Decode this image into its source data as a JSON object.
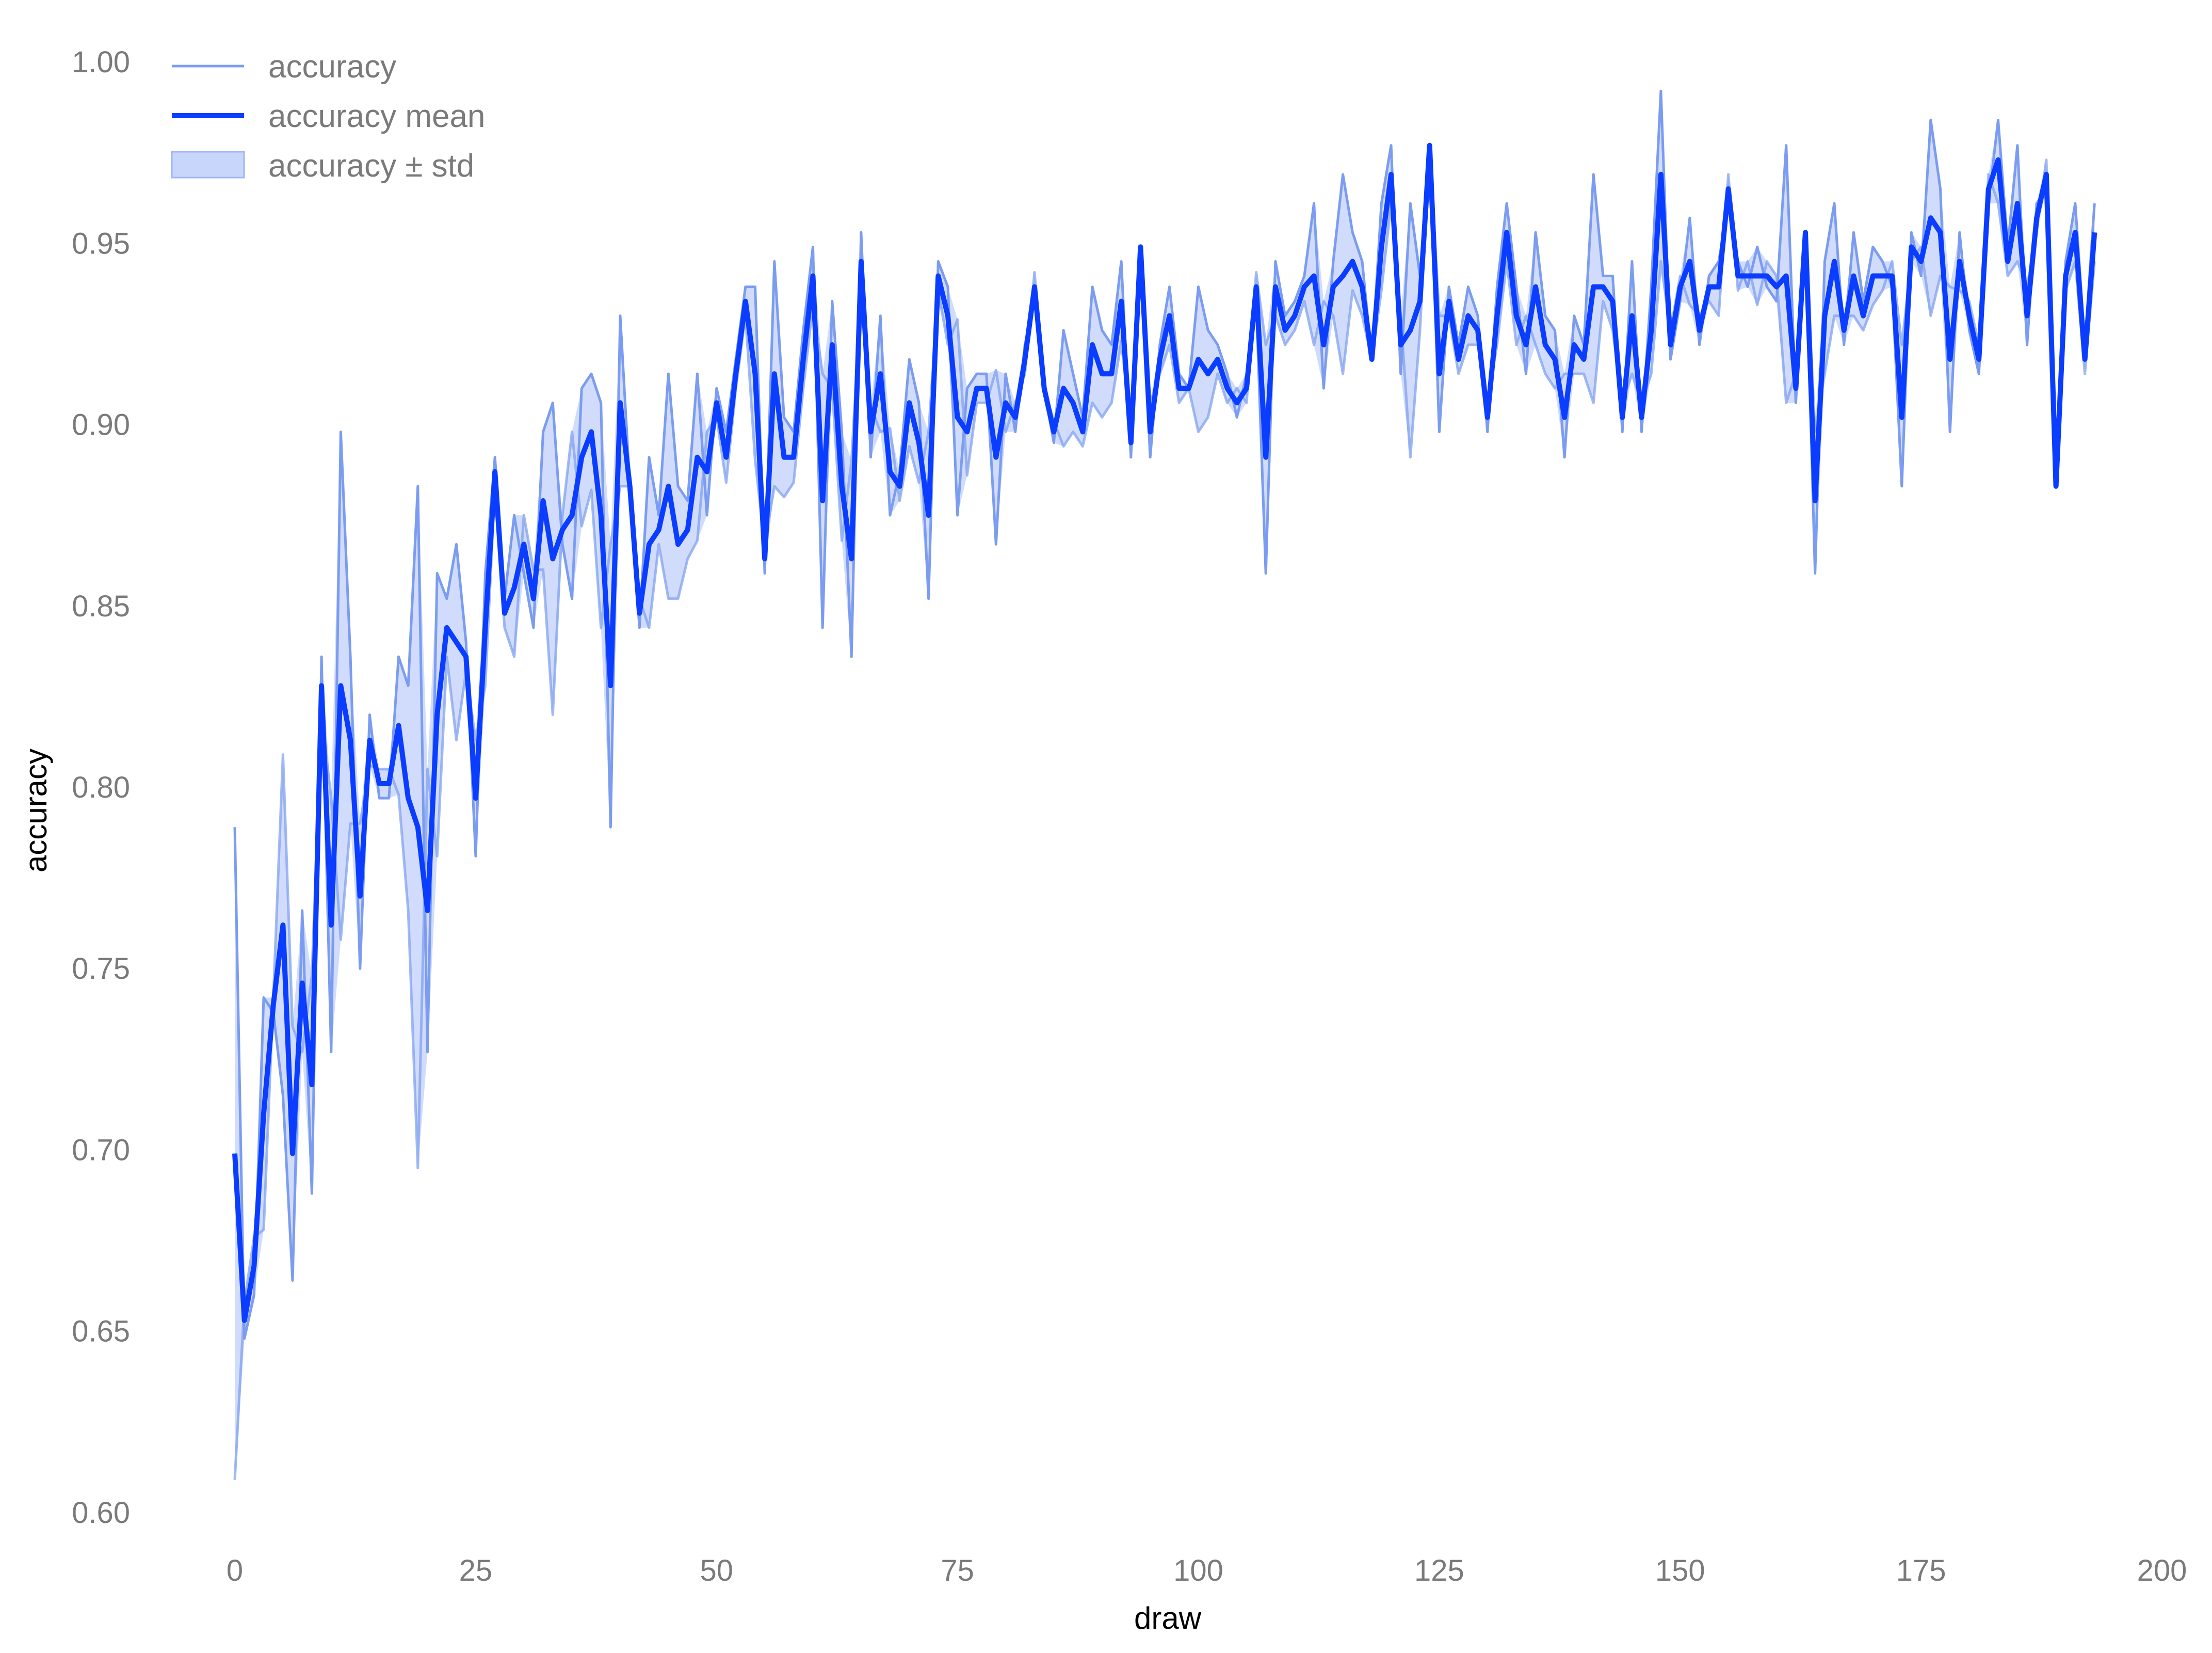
{
  "chart_data": {
    "type": "line",
    "title": "",
    "xlabel": "draw",
    "ylabel": "accuracy",
    "xlim": [
      0,
      200
    ],
    "ylim": [
      0.6,
      1.0
    ],
    "grid": false,
    "legend_position": "top-left",
    "x_ticks": [
      0,
      25,
      50,
      75,
      100,
      125,
      150,
      175,
      200
    ],
    "y_ticks": [
      0.6,
      0.65,
      0.7,
      0.75,
      0.8,
      0.85,
      0.9,
      0.95,
      1.0
    ],
    "x_tick_labels": [
      "0",
      "25",
      "50",
      "75",
      "100",
      "125",
      "150",
      "175",
      "200"
    ],
    "y_tick_labels": [
      "0.60",
      "0.65",
      "0.70",
      "0.75",
      "0.80",
      "0.85",
      "0.90",
      "0.95",
      "1.00"
    ],
    "legend": [
      {
        "label": "accuracy",
        "kind": "line-light"
      },
      {
        "label": "accuracy mean",
        "kind": "line-dark"
      },
      {
        "label": "accuracy ± std",
        "kind": "band"
      }
    ],
    "colors": {
      "mean": "#0a3dff",
      "runs": "#7b9cf0",
      "band": "#c9d6fb",
      "band_edge": "#9fb5f5",
      "tick_text": "#7a7a7a",
      "axis_text": "#000000"
    },
    "x": [
      0,
      1,
      2,
      3,
      4,
      5,
      6,
      7,
      8,
      9,
      10,
      11,
      12,
      13,
      14,
      15,
      16,
      17,
      18,
      19,
      20,
      21,
      22,
      23,
      24,
      25,
      26,
      27,
      28,
      29,
      30,
      31,
      32,
      33,
      34,
      35,
      36,
      37,
      38,
      39,
      40,
      41,
      42,
      43,
      44,
      45,
      46,
      47,
      48,
      49,
      50,
      51,
      52,
      53,
      54,
      55,
      56,
      57,
      58,
      59,
      60,
      61,
      62,
      63,
      64,
      65,
      66,
      67,
      68,
      69,
      70,
      71,
      72,
      73,
      74,
      75,
      76,
      77,
      78,
      79,
      80,
      81,
      82,
      83,
      84,
      85,
      86,
      87,
      88,
      89,
      90,
      91,
      92,
      93,
      94,
      95,
      96,
      97,
      98,
      99,
      100,
      101,
      102,
      103,
      104,
      105,
      106,
      107,
      108,
      109,
      110,
      111,
      112,
      113,
      114,
      115,
      116,
      117,
      118,
      119,
      120,
      121,
      122,
      123,
      124,
      125,
      126,
      127,
      128,
      129,
      130,
      131,
      132,
      133,
      134,
      135,
      136,
      137,
      138,
      139,
      140,
      141,
      142,
      143,
      144,
      145,
      146,
      147,
      148,
      149,
      150,
      151,
      152,
      153,
      154,
      155,
      156,
      157,
      158,
      159,
      160,
      161,
      162,
      163,
      164,
      165,
      166,
      167,
      168,
      169,
      170,
      171,
      172,
      173,
      174,
      175,
      176,
      177,
      178,
      179,
      180,
      181,
      182,
      183,
      184,
      185,
      186,
      187,
      188,
      189,
      190,
      191,
      192,
      193
    ],
    "series": [
      {
        "name": "accuracy mean",
        "values": [
          0.699,
          0.653,
          0.668,
          0.71,
          0.74,
          0.762,
          0.699,
          0.746,
          0.718,
          0.828,
          0.762,
          0.828,
          0.813,
          0.77,
          0.813,
          0.801,
          0.801,
          0.817,
          0.797,
          0.789,
          0.766,
          0.82,
          0.844,
          0.84,
          0.836,
          0.797,
          0.844,
          0.887,
          0.848,
          0.855,
          0.867,
          0.852,
          0.879,
          0.863,
          0.871,
          0.875,
          0.891,
          0.898,
          0.875,
          0.828,
          0.906,
          0.883,
          0.848,
          0.867,
          0.871,
          0.883,
          0.867,
          0.871,
          0.891,
          0.887,
          0.906,
          0.891,
          0.914,
          0.934,
          0.914,
          0.863,
          0.914,
          0.891,
          0.891,
          0.918,
          0.941,
          0.879,
          0.922,
          0.883,
          0.863,
          0.945,
          0.898,
          0.914,
          0.887,
          0.883,
          0.906,
          0.895,
          0.875,
          0.941,
          0.93,
          0.902,
          0.898,
          0.91,
          0.91,
          0.891,
          0.906,
          0.902,
          0.918,
          0.938,
          0.91,
          0.898,
          0.91,
          0.906,
          0.898,
          0.922,
          0.914,
          0.914,
          0.934,
          0.895,
          0.949,
          0.898,
          0.918,
          0.93,
          0.91,
          0.91,
          0.918,
          0.914,
          0.918,
          0.91,
          0.906,
          0.91,
          0.938,
          0.891,
          0.938,
          0.926,
          0.93,
          0.938,
          0.941,
          0.922,
          0.938,
          0.941,
          0.945,
          0.938,
          0.918,
          0.949,
          0.969,
          0.922,
          0.926,
          0.934,
          0.977,
          0.914,
          0.934,
          0.918,
          0.93,
          0.926,
          0.902,
          0.93,
          0.953,
          0.93,
          0.922,
          0.938,
          0.922,
          0.918,
          0.902,
          0.922,
          0.918,
          0.938,
          0.938,
          0.934,
          0.902,
          0.93,
          0.902,
          0.926,
          0.969,
          0.922,
          0.938,
          0.945,
          0.926,
          0.938,
          0.938,
          0.965,
          0.941,
          0.941,
          0.941,
          0.941,
          0.938,
          0.941,
          0.91,
          0.953,
          0.879,
          0.93,
          0.945,
          0.926,
          0.941,
          0.93,
          0.941,
          0.941,
          0.941,
          0.902,
          0.949,
          0.945,
          0.957,
          0.953,
          0.918,
          0.945,
          0.93,
          0.918,
          0.965,
          0.973,
          0.945,
          0.961,
          0.93,
          0.957,
          0.969,
          0.883,
          0.941,
          0.953,
          0.918,
          0.953
        ]
      },
      {
        "name": "accuracy",
        "values": [
          0.789,
          0.648,
          0.66,
          0.742,
          0.738,
          0.715,
          0.664,
          0.766,
          0.688,
          0.836,
          0.727,
          0.898,
          0.836,
          0.75,
          0.82,
          0.797,
          0.797,
          0.836,
          0.828,
          0.883,
          0.727,
          0.859,
          0.852,
          0.867,
          0.84,
          0.781,
          0.859,
          0.891,
          0.852,
          0.875,
          0.859,
          0.844,
          0.898,
          0.906,
          0.867,
          0.852,
          0.91,
          0.914,
          0.906,
          0.789,
          0.93,
          0.883,
          0.844,
          0.891,
          0.875,
          0.914,
          0.883,
          0.879,
          0.914,
          0.875,
          0.91,
          0.898,
          0.918,
          0.938,
          0.938,
          0.859,
          0.945,
          0.902,
          0.898,
          0.926,
          0.949,
          0.844,
          0.934,
          0.898,
          0.836,
          0.953,
          0.891,
          0.93,
          0.875,
          0.887,
          0.918,
          0.906,
          0.852,
          0.945,
          0.938,
          0.875,
          0.91,
          0.914,
          0.914,
          0.867,
          0.914,
          0.898,
          0.922,
          0.934,
          0.91,
          0.895,
          0.926,
          0.914,
          0.902,
          0.938,
          0.926,
          0.922,
          0.945,
          0.891,
          0.949,
          0.891,
          0.922,
          0.938,
          0.914,
          0.91,
          0.938,
          0.926,
          0.922,
          0.914,
          0.902,
          0.914,
          0.934,
          0.859,
          0.945,
          0.93,
          0.934,
          0.941,
          0.961,
          0.91,
          0.945,
          0.969,
          0.953,
          0.945,
          0.918,
          0.961,
          0.977,
          0.914,
          0.961,
          0.941,
          0.977,
          0.898,
          0.938,
          0.922,
          0.938,
          0.93,
          0.898,
          0.938,
          0.961,
          0.938,
          0.914,
          0.953,
          0.93,
          0.926,
          0.891,
          0.93,
          0.922,
          0.969,
          0.941,
          0.941,
          0.898,
          0.945,
          0.898,
          0.938,
          0.992,
          0.918,
          0.934,
          0.957,
          0.922,
          0.941,
          0.945,
          0.961,
          0.945,
          0.938,
          0.949,
          0.938,
          0.934,
          0.977,
          0.906,
          0.953,
          0.859,
          0.945,
          0.961,
          0.922,
          0.953,
          0.934,
          0.949,
          0.945,
          0.938,
          0.883,
          0.953,
          0.941,
          0.984,
          0.965,
          0.898,
          0.953,
          0.926,
          0.914,
          0.961,
          0.984,
          0.949,
          0.977,
          0.922,
          0.961,
          0.965,
          0.883,
          0.945,
          0.961,
          0.922,
          0.961
        ]
      },
      {
        "name": "accuracy",
        "values": [
          0.609,
          0.658,
          0.676,
          0.678,
          0.742,
          0.809,
          0.734,
          0.727,
          0.748,
          0.82,
          0.797,
          0.758,
          0.79,
          0.79,
          0.806,
          0.805,
          0.805,
          0.798,
          0.766,
          0.695,
          0.805,
          0.781,
          0.836,
          0.813,
          0.832,
          0.813,
          0.828,
          0.883,
          0.844,
          0.836,
          0.875,
          0.86,
          0.86,
          0.82,
          0.875,
          0.898,
          0.872,
          0.882,
          0.844,
          0.867,
          0.883,
          0.883,
          0.852,
          0.844,
          0.867,
          0.852,
          0.852,
          0.863,
          0.868,
          0.898,
          0.902,
          0.884,
          0.91,
          0.93,
          0.89,
          0.867,
          0.883,
          0.88,
          0.884,
          0.91,
          0.933,
          0.914,
          0.91,
          0.868,
          0.89,
          0.937,
          0.905,
          0.898,
          0.899,
          0.879,
          0.894,
          0.884,
          0.898,
          0.937,
          0.922,
          0.929,
          0.886,
          0.906,
          0.906,
          0.915,
          0.898,
          0.906,
          0.914,
          0.942,
          0.91,
          0.901,
          0.894,
          0.898,
          0.894,
          0.906,
          0.902,
          0.906,
          0.923,
          0.899,
          0.949,
          0.906,
          0.914,
          0.922,
          0.906,
          0.91,
          0.898,
          0.902,
          0.914,
          0.906,
          0.91,
          0.906,
          0.942,
          0.922,
          0.93,
          0.922,
          0.926,
          0.934,
          0.922,
          0.934,
          0.93,
          0.914,
          0.937,
          0.93,
          0.918,
          0.937,
          0.961,
          0.93,
          0.891,
          0.926,
          0.977,
          0.93,
          0.93,
          0.914,
          0.922,
          0.922,
          0.906,
          0.922,
          0.945,
          0.922,
          0.93,
          0.922,
          0.914,
          0.91,
          0.914,
          0.914,
          0.914,
          0.906,
          0.934,
          0.926,
          0.906,
          0.914,
          0.906,
          0.914,
          0.945,
          0.926,
          0.941,
          0.933,
          0.93,
          0.934,
          0.93,
          0.969,
          0.937,
          0.945,
          0.933,
          0.945,
          0.941,
          0.906,
          0.914,
          0.953,
          0.898,
          0.914,
          0.93,
          0.93,
          0.93,
          0.926,
          0.933,
          0.937,
          0.945,
          0.922,
          0.945,
          0.949,
          0.93,
          0.941,
          0.938,
          0.937,
          0.934,
          0.922,
          0.969,
          0.961,
          0.941,
          0.945,
          0.938,
          0.953,
          0.973,
          0.883,
          0.937,
          0.945,
          0.914,
          0.945
        ]
      }
    ]
  }
}
